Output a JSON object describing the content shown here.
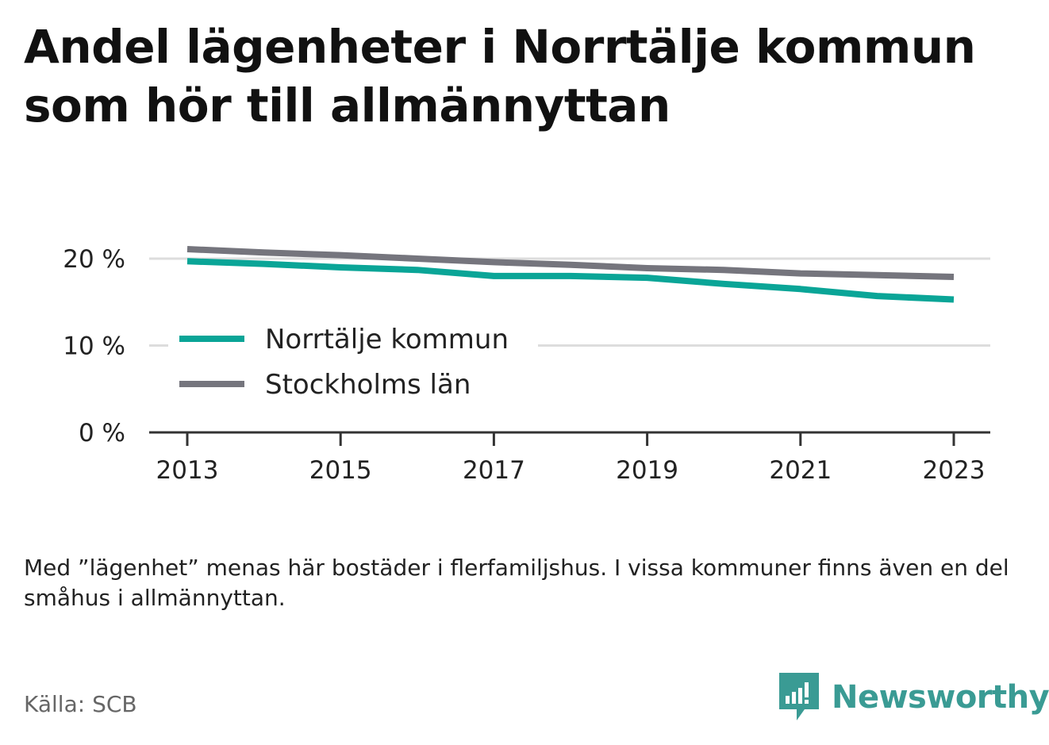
{
  "title": {
    "line1": "Andel lägenheter i Norrtälje kommun",
    "line2": "som hör till allmännyttan"
  },
  "chart_data": {
    "type": "line",
    "x": [
      2013,
      2014,
      2015,
      2016,
      2017,
      2018,
      2019,
      2020,
      2021,
      2022,
      2023
    ],
    "x_tick_labels": [
      "2013",
      "2015",
      "2017",
      "2019",
      "2021",
      "2023"
    ],
    "y_tick_labels": [
      "0 %",
      "10 %",
      "20 %"
    ],
    "ylim": [
      0,
      20
    ],
    "grid": true,
    "legend_position": "middle-left",
    "series": [
      {
        "name": "Norrtälje kommun",
        "color": "#0aa597",
        "values": [
          19.7,
          19.4,
          19.0,
          18.7,
          18.0,
          18.0,
          17.8,
          17.1,
          16.5,
          15.7,
          15.3
        ]
      },
      {
        "name": "Stockholms län",
        "color": "#75757d",
        "values": [
          21.1,
          20.7,
          20.4,
          20.0,
          19.6,
          19.3,
          18.9,
          18.7,
          18.3,
          18.1,
          17.9
        ]
      }
    ]
  },
  "note": "Med ”lägenhet” menas här bostäder i flerfamiljshus. I vissa kommuner finns även en del småhus i allmännyttan.",
  "source": "Källa: SCB",
  "logo": {
    "text": "Newsworthy",
    "color": "#3a9b94",
    "icon": "newsworthy-logo-icon"
  }
}
